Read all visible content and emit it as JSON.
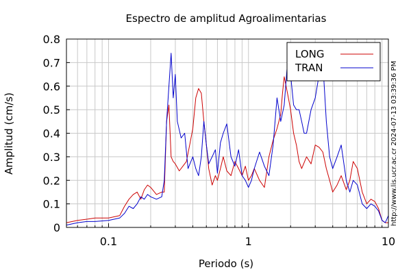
{
  "chart_data": {
    "type": "line",
    "title": "Espectro de amplitud Agroalimentarias",
    "xlabel": "Periodo (s)",
    "ylabel": "Amplitud (cm/s)",
    "x_scale": "log",
    "xlim": [
      0.05,
      10
    ],
    "ylim": [
      0,
      0.8
    ],
    "x_ticks": [
      {
        "value": 0.1,
        "label": "0.1"
      },
      {
        "value": 1,
        "label": "1"
      },
      {
        "value": 10,
        "label": "10"
      }
    ],
    "y_ticks": [
      {
        "value": 0,
        "label": "0"
      },
      {
        "value": 0.1,
        "label": "0.1"
      },
      {
        "value": 0.2,
        "label": "0.2"
      },
      {
        "value": 0.3,
        "label": "0.3"
      },
      {
        "value": 0.4,
        "label": "0.4"
      },
      {
        "value": 0.5,
        "label": "0.5"
      },
      {
        "value": 0.6,
        "label": "0.6"
      },
      {
        "value": 0.7,
        "label": "0.7"
      },
      {
        "value": 0.8,
        "label": "0.8"
      }
    ],
    "grid": true,
    "legend_position": "top-right",
    "series": [
      {
        "name": "LONG",
        "color": "#cc0000",
        "x": [
          0.05,
          0.06,
          0.07,
          0.08,
          0.1,
          0.12,
          0.13,
          0.14,
          0.15,
          0.16,
          0.17,
          0.18,
          0.19,
          0.2,
          0.22,
          0.24,
          0.25,
          0.26,
          0.27,
          0.28,
          0.29,
          0.3,
          0.32,
          0.34,
          0.36,
          0.38,
          0.4,
          0.42,
          0.44,
          0.46,
          0.48,
          0.5,
          0.52,
          0.55,
          0.58,
          0.6,
          0.63,
          0.66,
          0.7,
          0.75,
          0.8,
          0.85,
          0.9,
          0.95,
          1.0,
          1.05,
          1.1,
          1.2,
          1.3,
          1.4,
          1.5,
          1.6,
          1.7,
          1.75,
          1.8,
          1.9,
          2.0,
          2.1,
          2.2,
          2.3,
          2.4,
          2.6,
          2.8,
          3.0,
          3.2,
          3.4,
          3.6,
          3.8,
          4.0,
          4.3,
          4.6,
          5.0,
          5.3,
          5.6,
          6.0,
          6.5,
          7.0,
          7.5,
          8.0,
          8.5,
          9.0,
          9.5,
          10.0
        ],
        "y": [
          0.02,
          0.03,
          0.035,
          0.04,
          0.04,
          0.05,
          0.09,
          0.12,
          0.14,
          0.15,
          0.12,
          0.16,
          0.18,
          0.17,
          0.14,
          0.15,
          0.15,
          0.45,
          0.52,
          0.3,
          0.28,
          0.27,
          0.24,
          0.26,
          0.28,
          0.35,
          0.42,
          0.55,
          0.59,
          0.57,
          0.45,
          0.35,
          0.25,
          0.18,
          0.22,
          0.2,
          0.25,
          0.3,
          0.24,
          0.22,
          0.28,
          0.25,
          0.22,
          0.26,
          0.2,
          0.22,
          0.25,
          0.2,
          0.17,
          0.3,
          0.37,
          0.42,
          0.48,
          0.57,
          0.64,
          0.57,
          0.5,
          0.4,
          0.35,
          0.28,
          0.25,
          0.3,
          0.27,
          0.35,
          0.34,
          0.32,
          0.25,
          0.2,
          0.15,
          0.18,
          0.22,
          0.16,
          0.2,
          0.28,
          0.25,
          0.15,
          0.1,
          0.12,
          0.11,
          0.08,
          0.03,
          0.02,
          0.02
        ]
      },
      {
        "name": "TRAN",
        "color": "#0000cc",
        "x": [
          0.05,
          0.06,
          0.07,
          0.08,
          0.1,
          0.12,
          0.13,
          0.14,
          0.15,
          0.16,
          0.17,
          0.18,
          0.19,
          0.2,
          0.22,
          0.24,
          0.25,
          0.26,
          0.27,
          0.28,
          0.29,
          0.3,
          0.31,
          0.33,
          0.35,
          0.37,
          0.4,
          0.42,
          0.44,
          0.46,
          0.48,
          0.5,
          0.52,
          0.55,
          0.58,
          0.6,
          0.63,
          0.66,
          0.7,
          0.75,
          0.8,
          0.85,
          0.9,
          0.95,
          1.0,
          1.05,
          1.1,
          1.2,
          1.3,
          1.4,
          1.5,
          1.6,
          1.7,
          1.8,
          1.9,
          2.0,
          2.1,
          2.2,
          2.3,
          2.4,
          2.5,
          2.6,
          2.8,
          3.0,
          3.2,
          3.4,
          3.6,
          3.8,
          4.0,
          4.3,
          4.6,
          5.0,
          5.3,
          5.6,
          6.0,
          6.5,
          7.0,
          7.5,
          8.0,
          8.5,
          9.0,
          9.5,
          10.0
        ],
        "y": [
          0.01,
          0.02,
          0.025,
          0.025,
          0.03,
          0.04,
          0.06,
          0.09,
          0.08,
          0.1,
          0.13,
          0.12,
          0.14,
          0.13,
          0.12,
          0.13,
          0.2,
          0.45,
          0.6,
          0.74,
          0.55,
          0.65,
          0.45,
          0.38,
          0.4,
          0.25,
          0.3,
          0.25,
          0.22,
          0.3,
          0.45,
          0.35,
          0.27,
          0.3,
          0.33,
          0.23,
          0.36,
          0.4,
          0.44,
          0.3,
          0.26,
          0.33,
          0.22,
          0.2,
          0.17,
          0.2,
          0.25,
          0.32,
          0.26,
          0.22,
          0.35,
          0.55,
          0.45,
          0.52,
          0.7,
          0.65,
          0.52,
          0.5,
          0.5,
          0.45,
          0.4,
          0.4,
          0.5,
          0.55,
          0.65,
          0.7,
          0.45,
          0.3,
          0.25,
          0.3,
          0.35,
          0.2,
          0.15,
          0.2,
          0.18,
          0.1,
          0.08,
          0.1,
          0.09,
          0.07,
          0.03,
          0.02,
          0.05
        ]
      }
    ],
    "side_text": "http://www.lis.ucr.ac.cr 2024-07-13 03:39:36 PM"
  }
}
